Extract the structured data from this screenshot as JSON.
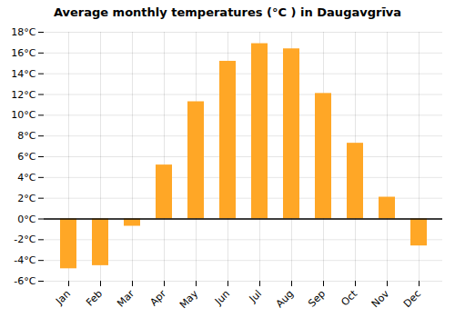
{
  "chart_data": {
    "type": "bar",
    "title": "Average monthly temperatures (°C ) in Daugavgrīva",
    "categories": [
      "Jan",
      "Feb",
      "Mar",
      "Apr",
      "May",
      "Jun",
      "Jul",
      "Aug",
      "Sep",
      "Oct",
      "Nov",
      "Dec"
    ],
    "values": [
      -4.8,
      -4.5,
      -0.7,
      5.2,
      11.3,
      15.2,
      16.9,
      16.4,
      12.1,
      7.3,
      2.1,
      -2.6
    ],
    "color": "#FFA726",
    "ylim": [
      -6,
      18
    ],
    "yticks": [
      {
        "value": -6,
        "label": "-6°C"
      },
      {
        "value": -4,
        "label": "-4°C"
      },
      {
        "value": -2,
        "label": "-2°C"
      },
      {
        "value": 0,
        "label": "0°C"
      },
      {
        "value": 2,
        "label": "2°C"
      },
      {
        "value": 4,
        "label": "4°C"
      },
      {
        "value": 6,
        "label": "6°C"
      },
      {
        "value": 8,
        "label": "8°C"
      },
      {
        "value": 10,
        "label": "10°C"
      },
      {
        "value": 12,
        "label": "12°C"
      },
      {
        "value": 14,
        "label": "14°C"
      },
      {
        "value": 16,
        "label": "16°C"
      },
      {
        "value": 18,
        "label": "18°C"
      }
    ],
    "grid": true
  }
}
